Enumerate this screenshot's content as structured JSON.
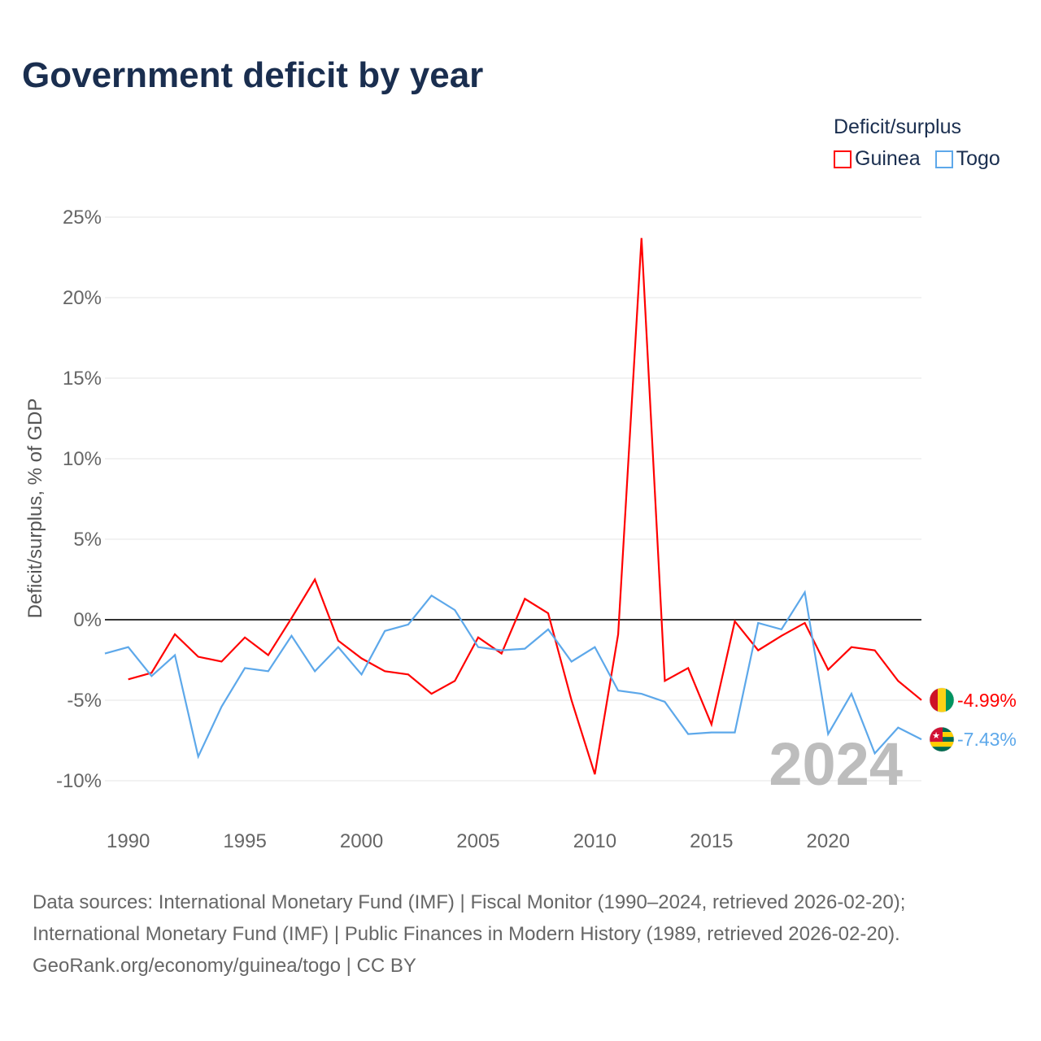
{
  "title": "Government deficit by year",
  "legend": {
    "title": "Deficit/surplus",
    "items": [
      "Guinea",
      "Togo"
    ]
  },
  "colors": {
    "Guinea": "#ff0000",
    "Togo": "#5da8ea"
  },
  "chart_data": {
    "type": "line",
    "title": "Government deficit by year",
    "ylabel": "Deficit/surplus, % of GDP",
    "xlabel": "",
    "ylim": [
      -10,
      25
    ],
    "xlim": [
      1989,
      2024
    ],
    "yticks": [
      25,
      20,
      15,
      10,
      5,
      0,
      -5,
      -10
    ],
    "ytick_labels": [
      "25%",
      "20%",
      "15%",
      "10%",
      "5%",
      "0%",
      "-5%",
      "-10%"
    ],
    "xticks": [
      1990,
      1995,
      2000,
      2005,
      2010,
      2015,
      2020
    ],
    "xtick_labels": [
      "1990",
      "1995",
      "2000",
      "2005",
      "2010",
      "2015",
      "2020"
    ],
    "legend_position": "top-right",
    "grid": true,
    "year_watermark": "2024",
    "series": [
      {
        "name": "Guinea",
        "start": 1990,
        "end_label": "-4.99%",
        "values": [
          -3.7,
          -3.3,
          -0.9,
          -2.3,
          -2.6,
          -1.1,
          -2.2,
          0.1,
          2.5,
          -1.3,
          -2.4,
          -3.2,
          -3.4,
          -4.6,
          -3.8,
          -1.1,
          -2.1,
          1.3,
          0.4,
          -5.0,
          -9.6,
          -0.9,
          23.7,
          -3.8,
          -3.0,
          -6.5,
          -0.1,
          -1.9,
          -1.0,
          -0.2,
          -3.1,
          -1.7,
          -1.9,
          -3.8,
          -4.99
        ]
      },
      {
        "name": "Togo",
        "start": 1989,
        "end_label": "-7.43%",
        "values": [
          -2.1,
          -1.7,
          -3.5,
          -2.2,
          -8.5,
          -5.4,
          -3.0,
          -3.2,
          -1.0,
          -3.2,
          -1.7,
          -3.4,
          -0.7,
          -0.3,
          1.5,
          0.6,
          -1.7,
          -1.9,
          -1.8,
          -0.6,
          -2.6,
          -1.7,
          -4.4,
          -4.6,
          -5.1,
          -7.1,
          -7.0,
          -7.0,
          -0.2,
          -0.6,
          1.7,
          -7.1,
          -4.6,
          -8.3,
          -6.7,
          -7.43
        ]
      }
    ]
  },
  "footer": [
    "Data sources: International Monetary Fund (IMF) | Fiscal Monitor (1990–2024, retrieved 2026-02-20);",
    "International Monetary Fund (IMF) | Public Finances in Modern History (1989, retrieved 2026-02-20).",
    "GeoRank.org/economy/guinea/togo | CC BY"
  ]
}
